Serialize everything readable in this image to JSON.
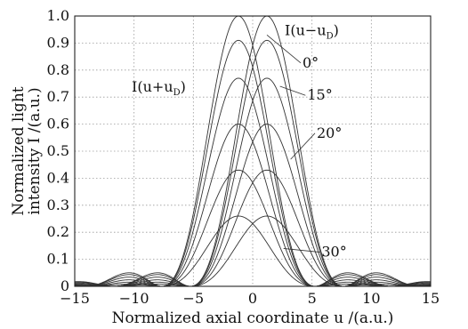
{
  "chart_data": {
    "type": "line",
    "xlabel": "Normalized axial coordinate u /(a.u.)",
    "ylabel_lines": [
      "Normalized light",
      "intensity I /(a.u.)"
    ],
    "xlim": [
      -15,
      15
    ],
    "ylim": [
      0,
      1.0
    ],
    "xticks": [
      -15,
      -10,
      -5,
      0,
      5,
      10,
      15
    ],
    "xtick_labels": [
      "−15",
      "−10",
      "−5",
      "0",
      "5",
      "10",
      "15"
    ],
    "yticks": [
      0,
      0.1,
      0.2,
      0.3,
      0.4,
      0.5,
      0.6,
      0.7,
      0.8,
      0.9,
      1.0
    ],
    "ytick_labels": [
      "0",
      "0.1",
      "0.2",
      "0.3",
      "0.4",
      "0.5",
      "0.6",
      "0.7",
      "0.8",
      "0.9",
      "1.0"
    ],
    "grid": true,
    "curve_family": [
      {
        "branch": "I(u+uD)",
        "peak_u": -1.2,
        "peak_I": 1.0
      },
      {
        "branch": "I(u+uD)",
        "peak_u": -1.2,
        "peak_I": 0.91
      },
      {
        "branch": "I(u+uD)",
        "peak_u": -1.2,
        "peak_I": 0.77
      },
      {
        "branch": "I(u+uD)",
        "peak_u": -1.2,
        "peak_I": 0.6
      },
      {
        "branch": "I(u+uD)",
        "peak_u": -1.2,
        "peak_I": 0.43
      },
      {
        "branch": "I(u+uD)",
        "peak_u": -1.2,
        "peak_I": 0.26
      },
      {
        "branch": "I(u−uD)",
        "peak_u": 1.2,
        "peak_I": 1.0
      },
      {
        "branch": "I(u−uD)",
        "peak_u": 1.2,
        "peak_I": 0.91
      },
      {
        "branch": "I(u−uD)",
        "peak_u": 1.2,
        "peak_I": 0.77
      },
      {
        "branch": "I(u−uD)",
        "peak_u": 1.2,
        "peak_I": 0.6
      },
      {
        "branch": "I(u−uD)",
        "peak_u": 1.2,
        "peak_I": 0.43
      },
      {
        "branch": "I(u−uD)",
        "peak_u": 1.2,
        "peak_I": 0.26
      }
    ],
    "side_lobe": {
      "u": 8.6,
      "I": 0.05
    },
    "annotations": [
      {
        "id": "left",
        "text": "I(u+u",
        "sub": "D",
        "close": ")",
        "u": -10.2,
        "I": 0.72
      },
      {
        "id": "right",
        "text": "I(u−u",
        "sub": "D",
        "close": ")",
        "u": 2.7,
        "I": 0.93
      },
      {
        "id": "a0",
        "text": "0°",
        "u": 4.2,
        "I": 0.81,
        "target": [
          1.2,
          0.93
        ]
      },
      {
        "id": "a15",
        "text": "15°",
        "u": 4.6,
        "I": 0.69,
        "target": [
          2.3,
          0.74
        ]
      },
      {
        "id": "a20",
        "text": "20°",
        "u": 5.4,
        "I": 0.55,
        "target": [
          3.2,
          0.47
        ]
      },
      {
        "id": "a30",
        "text": "30°",
        "u": 5.8,
        "I": 0.11,
        "target": [
          2.6,
          0.14
        ]
      }
    ]
  }
}
